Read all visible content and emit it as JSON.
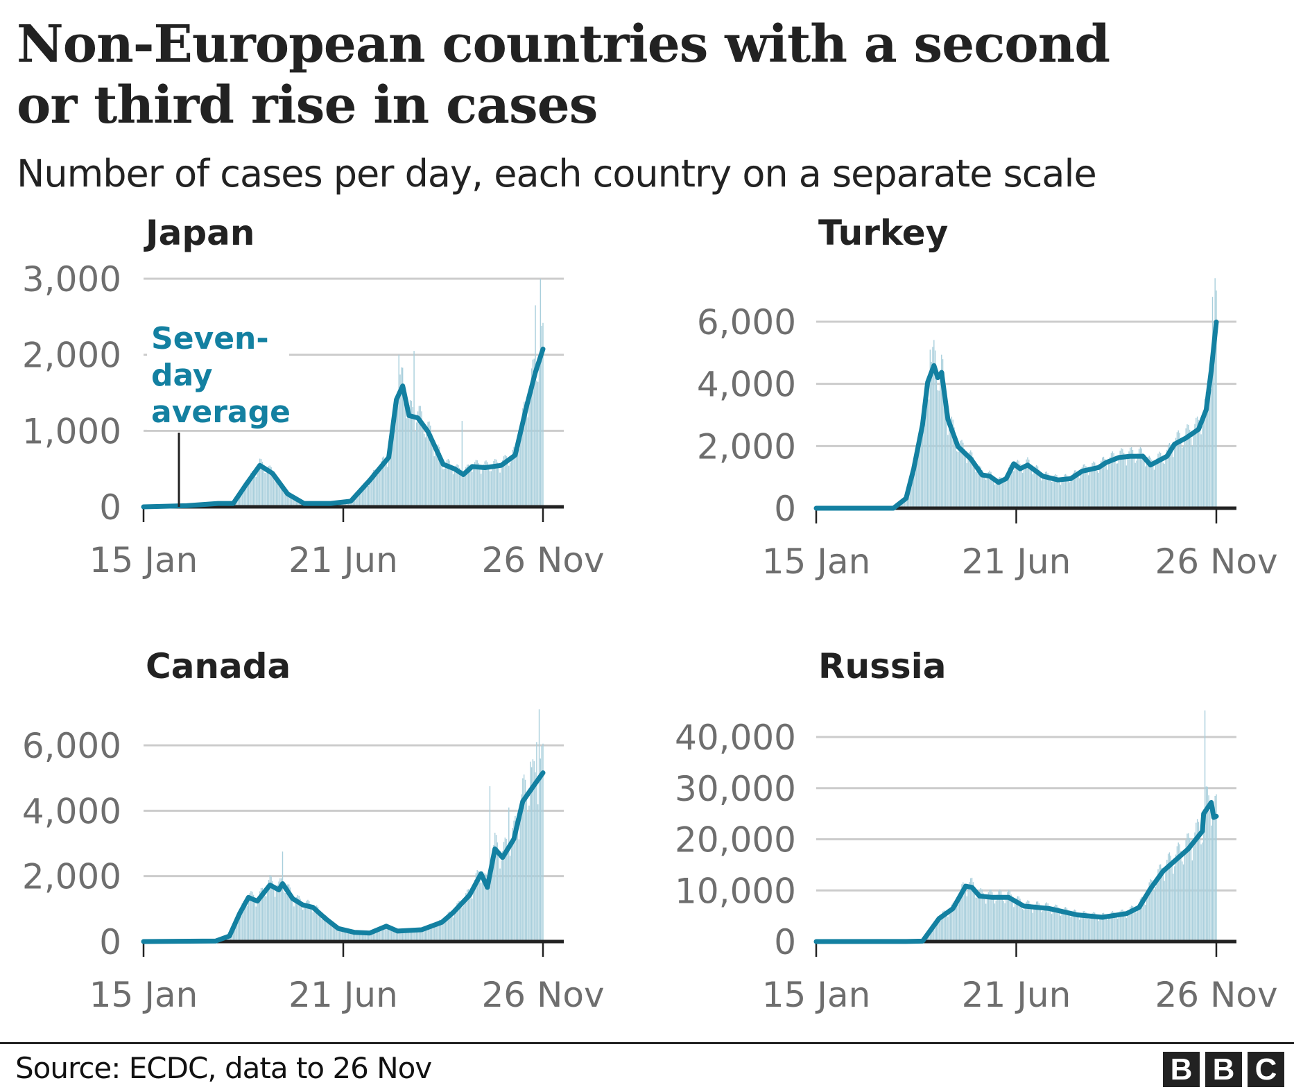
{
  "title_line1": "Non-European countries with a second",
  "title_line2": "or third rise in cases",
  "subtitle": "Number of cases per day, each country on a separate scale",
  "source": "Source: ECDC, data to 26 Nov",
  "logo": [
    "B",
    "B",
    "C"
  ],
  "colors": {
    "line": "#1380A1",
    "bars": "#a9cfdc",
    "axis": "#222222",
    "grid": "#cccccc",
    "tick_text": "#6e6e6e"
  },
  "annotation": {
    "lines": [
      "Seven-",
      "day",
      "average"
    ],
    "points_to_day": 28
  },
  "chart_data": [
    {
      "type": "line",
      "title": "Japan",
      "xlabel": "",
      "ylabel": "",
      "x_unit": "days since 15 Jan",
      "xlim": [
        0,
        316
      ],
      "x_ticks": [
        {
          "day": 0,
          "label": "15 Jan"
        },
        {
          "day": 158,
          "label": "21 Jun"
        },
        {
          "day": 316,
          "label": "26 Nov"
        }
      ],
      "ylim": [
        0,
        3000
      ],
      "y_ticks": [
        {
          "value": 0,
          "label": "0"
        },
        {
          "value": 1000,
          "label": "1,000"
        },
        {
          "value": 2000,
          "label": "2,000"
        },
        {
          "value": 3000,
          "label": "3,000"
        }
      ],
      "grid": true,
      "series": [
        {
          "name": "Seven-day average",
          "x": [
            0,
            34,
            59,
            71,
            81,
            92,
            102,
            114,
            127,
            148,
            164,
            179,
            194,
            200,
            205,
            210,
            217,
            225,
            237,
            246,
            253,
            260,
            270,
            283,
            294,
            303,
            310,
            316
          ],
          "y": [
            0,
            15,
            45,
            45,
            290,
            545,
            440,
            170,
            45,
            45,
            75,
            350,
            650,
            1410,
            1590,
            1200,
            1170,
            990,
            560,
            500,
            425,
            530,
            515,
            545,
            680,
            1320,
            1770,
            2075
          ]
        }
      ],
      "daily_spikes": [
        {
          "day": 202,
          "value": 2000
        },
        {
          "day": 214,
          "value": 2050
        },
        {
          "day": 252,
          "value": 1130
        },
        {
          "day": 310,
          "value": 2650
        },
        {
          "day": 314,
          "value": 3000
        }
      ]
    },
    {
      "type": "line",
      "title": "Turkey",
      "xlabel": "",
      "ylabel": "",
      "x_unit": "days since 15 Jan",
      "xlim": [
        0,
        316
      ],
      "x_ticks": [
        {
          "day": 0,
          "label": "15 Jan"
        },
        {
          "day": 158,
          "label": "21 Jun"
        },
        {
          "day": 316,
          "label": "26 Nov"
        }
      ],
      "ylim": [
        0,
        6000
      ],
      "y_ticks": [
        {
          "value": 0,
          "label": "0"
        },
        {
          "value": 2000,
          "label": "2,000"
        },
        {
          "value": 4000,
          "label": "4,000"
        },
        {
          "value": 6000,
          "label": "6,000"
        }
      ],
      "grid": true,
      "series": [
        {
          "name": "Seven-day average",
          "x": [
            0,
            61,
            71,
            77,
            84,
            88,
            93,
            96,
            99,
            104,
            112,
            122,
            131,
            137,
            144,
            150,
            156,
            161,
            167,
            179,
            191,
            201,
            210,
            223,
            229,
            239,
            248,
            258,
            264,
            277,
            283,
            292,
            302,
            308,
            312,
            316
          ],
          "y": [
            0,
            0,
            320,
            1270,
            2700,
            4050,
            4590,
            4200,
            4370,
            2860,
            1980,
            1590,
            1070,
            1030,
            830,
            950,
            1430,
            1270,
            1390,
            1030,
            910,
            950,
            1190,
            1310,
            1470,
            1630,
            1670,
            1670,
            1390,
            1670,
            2060,
            2260,
            2540,
            3170,
            4440,
            5990
          ]
        }
      ],
      "daily_spikes": [
        {
          "day": 90,
          "value": 5100
        },
        {
          "day": 315,
          "value": 7400
        },
        {
          "day": 313,
          "value": 6800
        }
      ]
    },
    {
      "type": "line",
      "title": "Canada",
      "xlabel": "",
      "ylabel": "",
      "x_unit": "days since 15 Jan",
      "xlim": [
        0,
        316
      ],
      "x_ticks": [
        {
          "day": 0,
          "label": "15 Jan"
        },
        {
          "day": 158,
          "label": "21 Jun"
        },
        {
          "day": 316,
          "label": "26 Nov"
        }
      ],
      "ylim": [
        0,
        6000
      ],
      "y_ticks": [
        {
          "value": 0,
          "label": "0"
        },
        {
          "value": 2000,
          "label": "2,000"
        },
        {
          "value": 4000,
          "label": "4,000"
        },
        {
          "value": 6000,
          "label": "6,000"
        }
      ],
      "grid": true,
      "series": [
        {
          "name": "Seven-day average",
          "x": [
            0,
            57,
            68,
            76,
            83,
            90,
            100,
            107,
            110,
            118,
            126,
            134,
            144,
            154,
            167,
            179,
            192,
            201,
            220,
            236,
            245,
            258,
            267,
            272,
            278,
            284,
            293,
            300,
            309,
            316
          ],
          "y": [
            0,
            15,
            170,
            855,
            1350,
            1235,
            1730,
            1580,
            1770,
            1310,
            1120,
            1045,
            700,
            400,
            280,
            260,
            470,
            320,
            360,
            590,
            890,
            1425,
            2075,
            1655,
            2835,
            2570,
            3140,
            4285,
            4780,
            5160
          ]
        }
      ],
      "daily_spikes": [
        {
          "day": 110,
          "value": 2750
        },
        {
          "day": 274,
          "value": 4750
        },
        {
          "day": 289,
          "value": 4100
        },
        {
          "day": 306,
          "value": 5500
        },
        {
          "day": 311,
          "value": 6100
        },
        {
          "day": 313,
          "value": 7100
        }
      ]
    },
    {
      "type": "line",
      "title": "Russia",
      "xlabel": "",
      "ylabel": "",
      "x_unit": "days since 15 Jan",
      "xlim": [
        0,
        316
      ],
      "x_ticks": [
        {
          "day": 0,
          "label": "15 Jan"
        },
        {
          "day": 158,
          "label": "21 Jun"
        },
        {
          "day": 316,
          "label": "26 Nov"
        }
      ],
      "ylim": [
        0,
        40000
      ],
      "y_ticks": [
        {
          "value": 0,
          "label": "0"
        },
        {
          "value": 10000,
          "label": "10,000"
        },
        {
          "value": 20000,
          "label": "20,000"
        },
        {
          "value": 30000,
          "label": "30,000"
        },
        {
          "value": 40000,
          "label": "40,000"
        }
      ],
      "grid": true,
      "series": [
        {
          "name": "Seven-day average",
          "x": [
            0,
            71,
            84,
            97,
            108,
            118,
            123,
            129,
            139,
            152,
            164,
            184,
            206,
            226,
            245,
            255,
            264,
            274,
            284,
            294,
            305,
            306,
            312,
            314,
            316
          ],
          "y": [
            0,
            10,
            83,
            4500,
            6450,
            10840,
            10600,
            8890,
            8640,
            8640,
            6930,
            6450,
            5220,
            4740,
            5470,
            6690,
            10350,
            13770,
            15970,
            18160,
            21580,
            25000,
            27200,
            24270,
            24500
          ]
        }
      ],
      "daily_spikes": [
        {
          "day": 307,
          "value": 45200
        }
      ]
    }
  ]
}
